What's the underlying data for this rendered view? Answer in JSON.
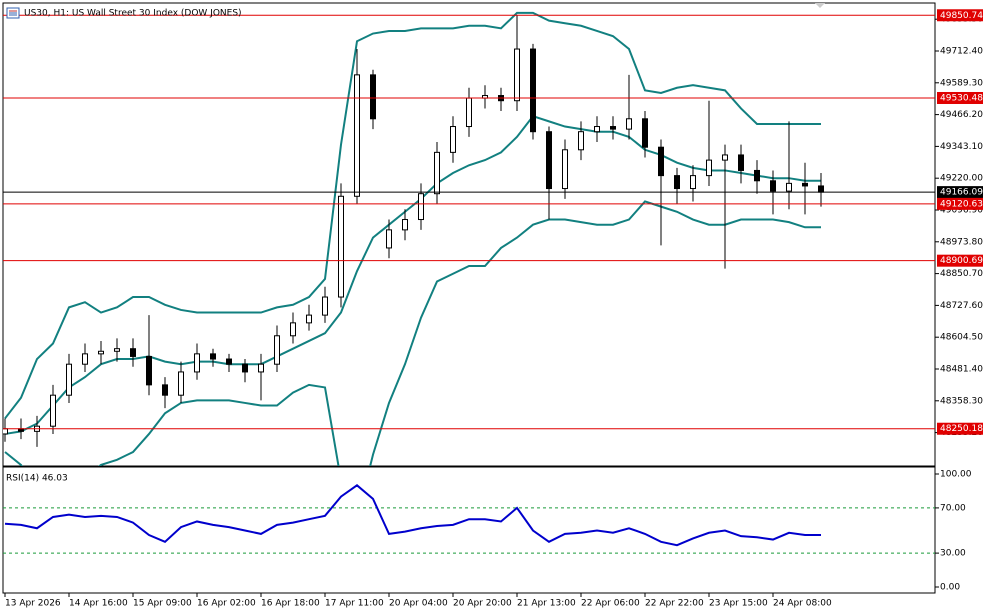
{
  "chart_data": [
    {
      "type": "candlestick",
      "title": "US30, H1:  US Wall Street 30 Index (DOW JONES)",
      "categories": [
        "13 Apr 2026",
        null,
        null,
        null,
        "14 Apr 16:00",
        null,
        null,
        null,
        "15 Apr 09:00",
        null,
        null,
        null,
        "16 Apr 02:00",
        null,
        null,
        null,
        "16 Apr 18:00",
        null,
        null,
        null,
        "17 Apr 11:00",
        null,
        null,
        null,
        "20 Apr 04:00",
        null,
        null,
        null,
        "20 Apr 20:00",
        null,
        null,
        null,
        "21 Apr 13:00",
        null,
        null,
        null,
        "22 Apr 06:00",
        null,
        null,
        null,
        "22 Apr 22:00",
        null,
        null,
        null,
        "23 Apr 15:00",
        null,
        null,
        null,
        "24 Apr 08:00",
        null,
        null,
        null
      ],
      "open": [
        48230,
        48250,
        48240,
        48260,
        48380,
        48500,
        48540,
        48550,
        48560,
        48530,
        48420,
        48380,
        48470,
        48540,
        48520,
        48500,
        48470,
        48500,
        48610,
        48660,
        48690,
        48760,
        49150,
        49620,
        48950,
        49020,
        49060,
        49160,
        49320,
        49420,
        49530,
        49540,
        49520,
        49720,
        49400,
        49180,
        49330,
        49400,
        49420,
        49410,
        49450,
        49340,
        49230,
        49180,
        49230,
        49290,
        49310,
        49250,
        49210,
        49170,
        49200,
        49190
      ],
      "high": [
        48290,
        48290,
        48300,
        48420,
        48540,
        48580,
        48590,
        48600,
        48600,
        48690,
        48450,
        48510,
        48580,
        48560,
        48540,
        48520,
        48540,
        48650,
        48700,
        48730,
        48800,
        49200,
        49720,
        49640,
        49060,
        49100,
        49200,
        49360,
        49460,
        49570,
        49580,
        49570,
        49850,
        49740,
        49420,
        49370,
        49440,
        49460,
        49460,
        49620,
        49480,
        49370,
        49260,
        49270,
        49520,
        49350,
        49350,
        49290,
        49250,
        49440,
        49280,
        49240
      ],
      "low": [
        48200,
        48210,
        48180,
        48230,
        48350,
        48470,
        48500,
        48510,
        48490,
        48380,
        48330,
        48350,
        48440,
        48490,
        48470,
        48430,
        48360,
        48470,
        48580,
        48630,
        48660,
        48720,
        49120,
        49410,
        48910,
        48980,
        49020,
        49120,
        49280,
        49380,
        49490,
        49480,
        49480,
        49370,
        49060,
        49140,
        49290,
        49360,
        49370,
        49370,
        49300,
        48960,
        49120,
        49130,
        49190,
        48870,
        49200,
        49160,
        49080,
        49100,
        49080,
        49110
      ],
      "close": [
        48250,
        48240,
        48260,
        48380,
        48500,
        48540,
        48550,
        48560,
        48530,
        48420,
        48380,
        48470,
        48540,
        48520,
        48500,
        48470,
        48500,
        48610,
        48660,
        48690,
        48760,
        49150,
        49620,
        49450,
        49020,
        49060,
        49160,
        49320,
        49420,
        49530,
        49540,
        49520,
        49720,
        49400,
        49180,
        49330,
        49400,
        49420,
        49410,
        49450,
        49340,
        49230,
        49180,
        49230,
        49290,
        49310,
        49250,
        49210,
        49170,
        49200,
        49190,
        49166.09
      ],
      "color": "#000000",
      "bands": {
        "color": "#128080",
        "upper": [
          48290,
          48370,
          48520,
          48580,
          48720,
          48740,
          48700,
          48720,
          48760,
          48760,
          48730,
          48710,
          48700,
          48700,
          48700,
          48700,
          48700,
          48720,
          48730,
          48760,
          48830,
          49350,
          49750,
          49780,
          49790,
          49790,
          49800,
          49800,
          49800,
          49810,
          49810,
          49800,
          49860,
          49860,
          49830,
          49820,
          49810,
          49790,
          49770,
          49720,
          49560,
          49550,
          49570,
          49580,
          49570,
          49560,
          49490,
          49430,
          49430,
          49430,
          49430,
          49430
        ],
        "middle": [
          48230,
          48240,
          48270,
          48340,
          48410,
          48450,
          48500,
          48520,
          48520,
          48530,
          48510,
          48500,
          48510,
          48510,
          48500,
          48500,
          48500,
          48530,
          48560,
          48590,
          48620,
          48700,
          48860,
          48990,
          49040,
          49090,
          49140,
          49200,
          49240,
          49270,
          49290,
          49320,
          49380,
          49460,
          49440,
          49420,
          49410,
          49400,
          49400,
          49380,
          49330,
          49310,
          49280,
          49260,
          49250,
          49250,
          49240,
          49230,
          49220,
          49220,
          49210,
          49210
        ],
        "lower": [
          48160,
          48110,
          48020,
          47980,
          48000,
          48060,
          48110,
          48130,
          48160,
          48230,
          48310,
          48350,
          48360,
          48360,
          48360,
          48350,
          48340,
          48340,
          48390,
          48420,
          48410,
          48050,
          47900,
          48150,
          48350,
          48500,
          48680,
          48820,
          48850,
          48880,
          48880,
          48950,
          48990,
          49040,
          49060,
          49060,
          49050,
          49040,
          49040,
          49060,
          49130,
          49110,
          49090,
          49060,
          49040,
          49040,
          49060,
          49060,
          49060,
          49050,
          49030,
          49030
        ]
      },
      "ylim": [
        48105.9,
        49898.2
      ],
      "yticks": [
        {
          "value": 49835.5,
          "label": "49835.50"
        },
        {
          "value": 49712.4,
          "label": "49712.40"
        },
        {
          "value": 49589.3,
          "label": "49589.30"
        },
        {
          "value": 49466.2,
          "label": "49466.20"
        },
        {
          "value": 49343.1,
          "label": "49343.10"
        },
        {
          "value": 49220,
          "label": "49220.00"
        },
        {
          "value": 49096.9,
          "label": "49096.90"
        },
        {
          "value": 48973.8,
          "label": "48973.80"
        },
        {
          "value": 48850.7,
          "label": "48850.70"
        },
        {
          "value": 48727.6,
          "label": "48727.60"
        },
        {
          "value": 48604.5,
          "label": "48604.50"
        },
        {
          "value": 48481.4,
          "label": "48481.40"
        },
        {
          "value": 48358.3,
          "label": "48358.30"
        },
        {
          "value": 48235.2,
          "label": "48235.20"
        }
      ],
      "levels": [
        {
          "value": 49850.74,
          "color": "#e00000"
        },
        {
          "value": 49530.48,
          "color": "#e00000"
        },
        {
          "value": 49166.09,
          "color": "#000000"
        },
        {
          "value": 49120.63,
          "color": "#e00000"
        },
        {
          "value": 48900.69,
          "color": "#e00000"
        },
        {
          "value": 48250.18,
          "color": "#e00000"
        }
      ]
    },
    {
      "type": "line",
      "label": "RSI(14) 46.03",
      "color": "#0000cc",
      "values": [
        56,
        55,
        52,
        62,
        64,
        62,
        63,
        62,
        57,
        46,
        40,
        53,
        58,
        55,
        53,
        50,
        47,
        55,
        57,
        60,
        63,
        80,
        90,
        78,
        47,
        49,
        52,
        54,
        55,
        60,
        60,
        58,
        70,
        50,
        40,
        47,
        48,
        50,
        48,
        52,
        47,
        40,
        37,
        43,
        48,
        50,
        45,
        44,
        42,
        48,
        46,
        46.03
      ],
      "ylim": [
        -5.3,
        106.2
      ],
      "yticks": [
        {
          "value": 100,
          "label": "100.00"
        },
        {
          "value": 70,
          "label": "70.00"
        },
        {
          "value": 30,
          "label": "30.00"
        },
        {
          "value": 0,
          "label": "0.00"
        }
      ],
      "levels": [
        70,
        30
      ],
      "level_color": "#1a9a3a"
    }
  ]
}
